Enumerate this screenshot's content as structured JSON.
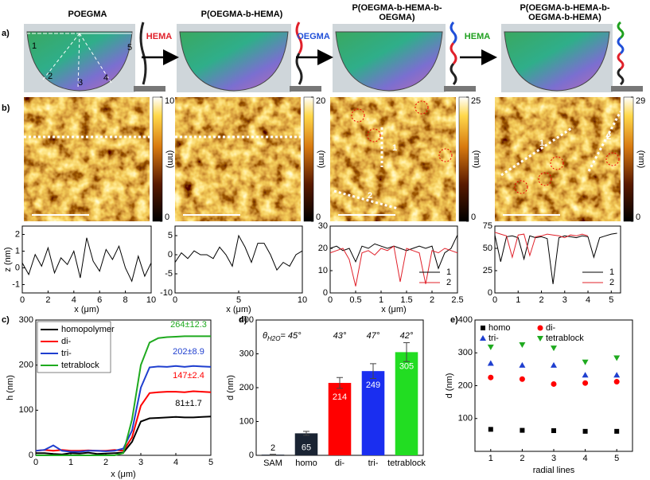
{
  "panel_labels": [
    "a)",
    "b)",
    "c)",
    "d)",
    "e)"
  ],
  "photos": [
    {
      "title": [
        "POEGMA"
      ],
      "line_labels": [
        "1",
        "2",
        "3",
        "4",
        "5"
      ]
    },
    {
      "title": [
        "P(OEGMA-b-HEMA)"
      ]
    },
    {
      "title": [
        "P(OEGMA-b-HEMA-b-",
        "OEGMA)"
      ]
    },
    {
      "title": [
        "P(OEGMA-b-HEMA-b-",
        "OEGMA-b-HEMA)"
      ]
    }
  ],
  "steps": [
    {
      "label": "HEMA",
      "color": "#e0202a"
    },
    {
      "label": "OEGMA",
      "color": "#1f4fd8"
    },
    {
      "label": "HEMA",
      "color": "#1fa01f"
    }
  ],
  "afm": [
    {
      "ticks": [
        0,
        10
      ],
      "unit": "(nm)"
    },
    {
      "ticks": [
        0,
        20
      ],
      "unit": "(nm)"
    },
    {
      "ticks": [
        0,
        25
      ],
      "unit": "(nm)",
      "line_labels": [
        "1",
        "2"
      ]
    },
    {
      "ticks": [
        0,
        29
      ],
      "unit": "(nm)",
      "line_labels": [
        "1",
        "2"
      ]
    }
  ],
  "chart_data": [
    {
      "type": "line",
      "ylabel": "z (nm)",
      "xlabel": "x (μm)",
      "xlim": [
        0,
        10
      ],
      "ylim": [
        -1.5,
        2.5
      ],
      "xticks": [
        0,
        2,
        4,
        6,
        8,
        10
      ],
      "yticks": [
        -1,
        0,
        1,
        2
      ],
      "series": [
        {
          "color": "#000000",
          "x": [
            0,
            0.5,
            1,
            1.5,
            2,
            2.5,
            3,
            3.5,
            4,
            4.5,
            5,
            5.5,
            6,
            6.5,
            7,
            7.5,
            8,
            8.5,
            9,
            9.5,
            10
          ],
          "values": [
            0.3,
            -0.4,
            0.8,
            0.1,
            1.2,
            -0.3,
            0.6,
            0.2,
            1.0,
            -0.6,
            1.8,
            0.4,
            -0.2,
            1.1,
            0.5,
            1.3,
            0.0,
            -0.8,
            0.7,
            -0.5,
            0.3
          ]
        }
      ]
    },
    {
      "type": "line",
      "xlabel": "x (μm)",
      "xlim": [
        0,
        10
      ],
      "ylim": [
        -10,
        7.5
      ],
      "xticks": [
        0,
        5,
        10
      ],
      "yticks": [
        -10,
        -5,
        0,
        5
      ],
      "series": [
        {
          "color": "#000000",
          "x": [
            0,
            0.5,
            1,
            1.5,
            2,
            2.5,
            3,
            3.5,
            4,
            4.5,
            5,
            5.5,
            6,
            6.5,
            7,
            7.5,
            8,
            8.5,
            9,
            9.5,
            10
          ],
          "values": [
            -2,
            0.5,
            -1,
            1,
            0,
            0,
            -1,
            2,
            0,
            -3,
            5,
            2,
            -2,
            3,
            3,
            0,
            -4,
            -2,
            -3,
            0,
            1
          ]
        }
      ]
    },
    {
      "type": "line",
      "xlabel": "x (μm)",
      "xlim": [
        0,
        2.5
      ],
      "ylim": [
        0,
        30
      ],
      "xticks": [
        0,
        0.5,
        1,
        1.5,
        2,
        2.5
      ],
      "yticks": [
        0,
        10,
        20,
        30
      ],
      "series": [
        {
          "name": "1",
          "color": "#000000",
          "x": [
            0,
            0.125,
            0.25,
            0.375,
            0.5,
            0.625,
            0.75,
            0.875,
            1,
            1.125,
            1.25,
            1.375,
            1.5,
            1.625,
            1.75,
            1.875,
            2,
            2.125,
            2.25,
            2.375,
            2.5
          ],
          "values": [
            20,
            21,
            19,
            20,
            14,
            21,
            20,
            22,
            21,
            20,
            21,
            20,
            19,
            20,
            21,
            20,
            21,
            11,
            18,
            20,
            26
          ]
        },
        {
          "name": "2",
          "color": "#e0202a",
          "x": [
            0,
            0.125,
            0.25,
            0.375,
            0.5,
            0.625,
            0.75,
            0.875,
            1,
            1.125,
            1.25,
            1.375,
            1.5,
            1.625,
            1.75,
            1.875,
            2,
            2.125,
            2.25,
            2.375,
            2.5
          ],
          "values": [
            18,
            19,
            20,
            15,
            3,
            18,
            19,
            17,
            20,
            19,
            21,
            5,
            20,
            19,
            18,
            4,
            19,
            18,
            20,
            19,
            18
          ]
        }
      ]
    },
    {
      "type": "line",
      "xlim": [
        0,
        5.4
      ],
      "ylim": [
        0,
        75
      ],
      "xticks": [
        0,
        1,
        2,
        3,
        4,
        5
      ],
      "yticks": [
        0,
        25,
        50,
        75
      ],
      "series": [
        {
          "name": "1",
          "color": "#000000",
          "x": [
            0,
            0.25,
            0.5,
            0.75,
            1,
            1.25,
            1.5,
            1.75,
            2,
            2.25,
            2.5,
            2.75,
            3,
            3.25,
            3.5,
            3.75,
            4,
            4.25,
            4.5,
            4.75,
            5,
            5.25
          ],
          "values": [
            65,
            35,
            63,
            64,
            62,
            38,
            64,
            62,
            63,
            61,
            10,
            62,
            64,
            63,
            62,
            64,
            63,
            40,
            62,
            64,
            66,
            67
          ]
        },
        {
          "name": "2",
          "color": "#e0202a",
          "x": [
            0,
            0.25,
            0.5,
            0.75,
            1,
            1.25,
            1.5,
            1.75,
            2,
            2.25,
            2.5,
            2.75,
            3,
            3.25,
            3.5,
            3.75,
            4
          ],
          "values": [
            68,
            66,
            64,
            40,
            65,
            66,
            42,
            63,
            64,
            66,
            65,
            64,
            62,
            65,
            64,
            66,
            64
          ]
        }
      ]
    },
    {
      "type": "line",
      "ylabel": "h (nm)",
      "xlabel": "x (μm)",
      "xlim": [
        0,
        5
      ],
      "ylim": [
        0,
        300
      ],
      "xticks": [
        0,
        1,
        2,
        3,
        4,
        5
      ],
      "yticks": [
        0,
        100,
        200,
        300
      ],
      "series": [
        {
          "name": "homopolymer",
          "color": "#000000",
          "x": [
            0,
            0.25,
            0.5,
            0.75,
            1,
            1.25,
            1.5,
            1.75,
            2,
            2.25,
            2.5,
            2.75,
            3,
            3.25,
            3.5,
            3.75,
            4,
            4.25,
            4.5,
            4.75,
            5
          ],
          "values": [
            5,
            5,
            3,
            2,
            5,
            4,
            6,
            3,
            4,
            5,
            6,
            30,
            75,
            82,
            83,
            84,
            85,
            84,
            84,
            85,
            86
          ]
        },
        {
          "name": "di-",
          "color": "#ff0000",
          "x": [
            0,
            0.25,
            0.5,
            0.75,
            1,
            1.25,
            1.5,
            1.75,
            2,
            2.25,
            2.5,
            2.75,
            3,
            3.25,
            3.5,
            3.75,
            4,
            4.25,
            4.5,
            4.75,
            5
          ],
          "values": [
            10,
            12,
            10,
            12,
            10,
            10,
            11,
            10,
            10,
            12,
            10,
            40,
            110,
            138,
            140,
            141,
            141,
            140,
            142,
            141,
            140
          ]
        },
        {
          "name": "tri-",
          "color": "#1f3fcf",
          "x": [
            0,
            0.25,
            0.5,
            0.75,
            1,
            1.25,
            1.5,
            1.75,
            2,
            2.25,
            2.5,
            2.75,
            3,
            3.25,
            3.5,
            3.75,
            4,
            4.25,
            4.5,
            4.75,
            5
          ],
          "values": [
            10,
            12,
            22,
            10,
            8,
            8,
            10,
            10,
            9,
            10,
            15,
            55,
            150,
            195,
            197,
            196,
            198,
            196,
            198,
            197,
            196
          ]
        },
        {
          "name": "tetrablock",
          "color": "#1faa1f",
          "x": [
            0,
            0.25,
            0.5,
            0.75,
            1,
            1.25,
            1.5,
            1.75,
            2,
            2.25,
            2.5,
            2.75,
            3,
            3.25,
            3.5,
            3.75,
            4,
            4.25,
            4.5,
            4.75,
            5
          ],
          "values": [
            0,
            0,
            0,
            0,
            0,
            0,
            0,
            0,
            0,
            0,
            5,
            80,
            200,
            250,
            260,
            262,
            263,
            264,
            264,
            264,
            264
          ]
        }
      ],
      "annotations": [
        {
          "text": "264±12.3",
          "color": "#1faa1f"
        },
        {
          "text": "202±8.9",
          "color": "#1f3fcf"
        },
        {
          "text": "147±2.4",
          "color": "#ff0000"
        },
        {
          "text": "81±1.7",
          "color": "#000000"
        }
      ]
    },
    {
      "type": "bar",
      "ylabel": "d (nm)",
      "ylim": [
        0,
        400
      ],
      "yticks": [
        0,
        100,
        200,
        300,
        400
      ],
      "categories": [
        "SAM",
        "homo",
        "di-",
        "tri-",
        "tetrablock"
      ],
      "values": [
        2,
        65,
        214,
        249,
        305
      ],
      "errors": [
        1,
        6,
        16,
        22,
        28
      ],
      "colors": [
        "#1a2433",
        "#1a2433",
        "#ff0000",
        "#1a2ef0",
        "#22dd22"
      ],
      "contact_angle": {
        "symbol": "θ",
        "subscript": "H2O",
        "text": "= 45°"
      },
      "annotations": [
        "43°",
        "47°",
        "42°"
      ]
    },
    {
      "type": "scatter",
      "ylabel": "d (nm)",
      "xlabel": "radial lines",
      "x": [
        1,
        2,
        3,
        4,
        5
      ],
      "xlim": [
        0.5,
        5.5
      ],
      "ylim": [
        0,
        400
      ],
      "xticks": [
        1,
        2,
        3,
        4,
        5
      ],
      "yticks": [
        100,
        200,
        300,
        400
      ],
      "series": [
        {
          "name": "homo",
          "color": "#000000",
          "marker": "square",
          "values": [
            67,
            64,
            63,
            61,
            61
          ]
        },
        {
          "name": "di-",
          "color": "#ff0000",
          "marker": "circle",
          "values": [
            225,
            220,
            205,
            208,
            212
          ]
        },
        {
          "name": "tri-",
          "color": "#1f3fcf",
          "marker": "triangle-up",
          "values": [
            268,
            262,
            262,
            232,
            232
          ]
        },
        {
          "name": "tetrablock",
          "color": "#1faa1f",
          "marker": "triangle-down",
          "values": [
            318,
            325,
            315,
            272,
            285
          ]
        }
      ]
    }
  ]
}
